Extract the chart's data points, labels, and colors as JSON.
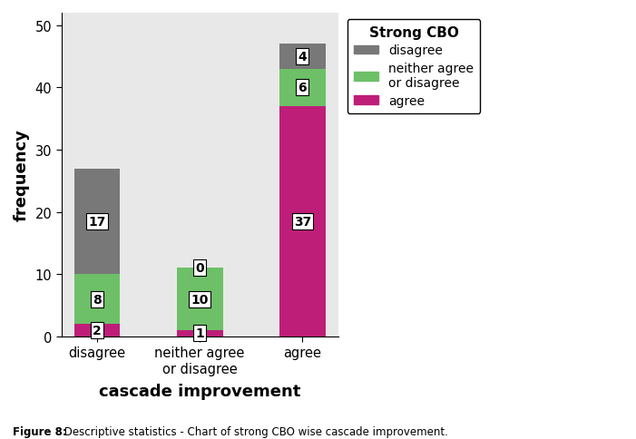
{
  "categories": [
    "disagree",
    "neither agree\nor disagree",
    "agree"
  ],
  "agree_values": [
    2,
    1,
    37
  ],
  "neither_values": [
    8,
    10,
    6
  ],
  "disagree_values": [
    17,
    0,
    4
  ],
  "agree_color": "#BE1E78",
  "neither_color": "#6DC067",
  "disagree_color": "#787878",
  "title": "Strong CBO",
  "ylabel": "frequency",
  "xlabel": "cascade improvement",
  "figcaption_bold": "Figure 8:",
  "figcaption_normal": " Descriptive statistics - Chart of strong CBO wise cascade improvement.",
  "ylim": [
    0,
    52
  ],
  "yticks": [
    0,
    10,
    20,
    30,
    40,
    50
  ],
  "legend_labels": [
    "disagree",
    "neither agree\nor disagree",
    "agree"
  ],
  "plot_bg_color": "#E8E8E8",
  "bar_width": 0.45
}
